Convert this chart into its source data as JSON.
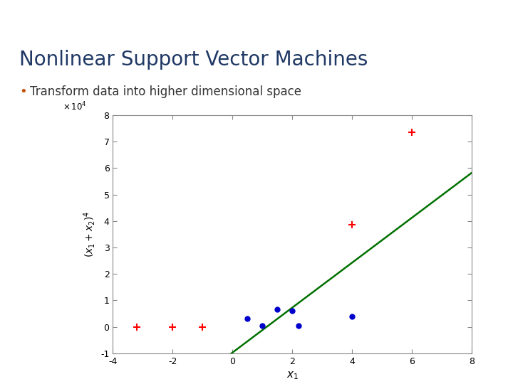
{
  "title": "Nonlinear Support Vector Machines",
  "bullet": "Transform data into higher dimensional space",
  "header_color": "#4D7FBF",
  "title_color": "#1F3864",
  "bullet_dot_color": "#C05000",
  "bg_color": "#FFFFFF",
  "red_plus_points": [
    [
      -3.2,
      0
    ],
    [
      -2.0,
      0
    ],
    [
      -1.0,
      0
    ],
    [
      4.0,
      38500
    ],
    [
      6.0,
      73500
    ]
  ],
  "blue_circle_points": [
    [
      0.5,
      3000
    ],
    [
      1.0,
      500
    ],
    [
      1.5,
      6500
    ],
    [
      2.0,
      6000
    ],
    [
      2.2,
      300
    ],
    [
      4.0,
      3800
    ]
  ],
  "xlim": [
    -4,
    8
  ],
  "ylim": [
    -10000,
    80000
  ],
  "ytick_labels": [
    "-1",
    "0",
    "1",
    "2",
    "3",
    "4",
    "5",
    "6",
    "7",
    "8"
  ],
  "ytick_values": [
    -10000,
    0,
    10000,
    20000,
    30000,
    40000,
    50000,
    60000,
    70000,
    80000
  ],
  "xtick_labels": [
    "-4",
    "-2",
    "0",
    "2",
    "4",
    "6",
    "8"
  ],
  "xtick_values": [
    -4,
    -2,
    0,
    2,
    4,
    6,
    8
  ],
  "curve_color": "#007000",
  "red_color": "#FF0000",
  "blue_color": "#0000CC",
  "curve_start_x": -1.25,
  "curve_end_x": 8.0,
  "curve_slope": 8500,
  "curve_intercept": -9700
}
